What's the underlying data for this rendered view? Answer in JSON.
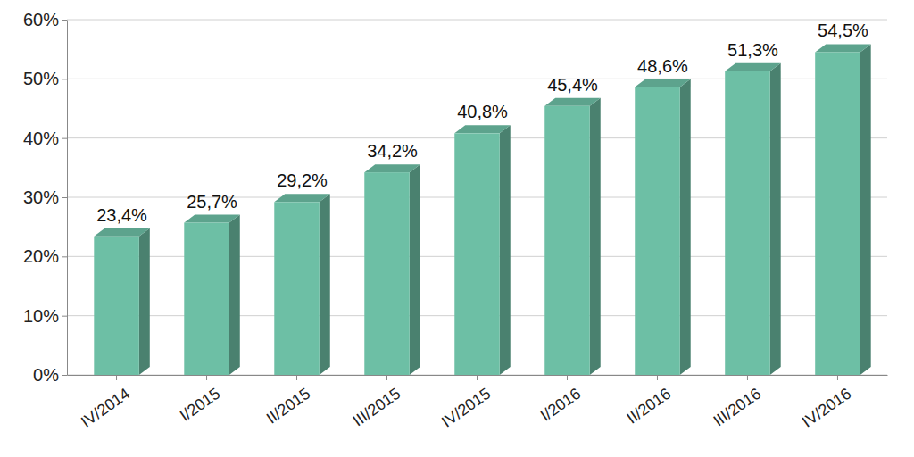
{
  "chart_data": {
    "type": "bar",
    "categories": [
      "IV/2014",
      "I/2015",
      "II/2015",
      "III/2015",
      "IV/2015",
      "I/2016",
      "II/2016",
      "III/2016",
      "IV/2016"
    ],
    "values": [
      23.4,
      25.7,
      29.2,
      34.2,
      40.8,
      45.4,
      48.6,
      51.3,
      54.5
    ],
    "value_labels": [
      "23,4%",
      "25,7%",
      "29,2%",
      "34,2%",
      "40,8%",
      "45,4%",
      "48,6%",
      "51,3%",
      "54,5%"
    ],
    "color": "#6dbfa5",
    "ylim": [
      0,
      60
    ],
    "yticks": [
      {
        "value": 0,
        "label": "0%"
      },
      {
        "value": 10,
        "label": "10%"
      },
      {
        "value": 20,
        "label": "20%"
      },
      {
        "value": 30,
        "label": "30%"
      },
      {
        "value": 40,
        "label": "40%"
      },
      {
        "value": 50,
        "label": "50%"
      },
      {
        "value": 60,
        "label": "60%"
      }
    ],
    "grid": true,
    "data_labels": true
  }
}
